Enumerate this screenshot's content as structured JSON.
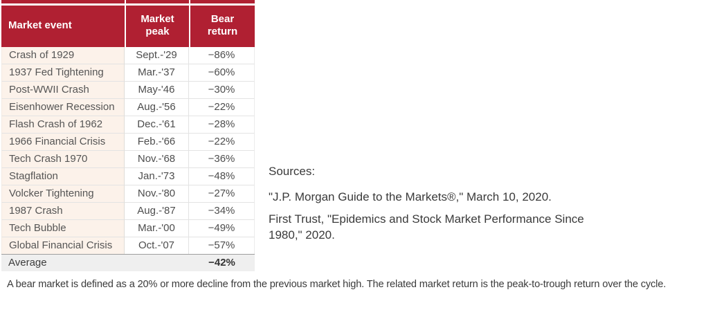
{
  "chart_data": {
    "type": "table",
    "title": "",
    "columns": [
      "Market event",
      "Market peak",
      "Bear return"
    ],
    "rows": [
      [
        "Crash of 1929",
        "Sept.-'29",
        "−86%"
      ],
      [
        "1937 Fed Tightening",
        "Mar.-'37",
        "−60%"
      ],
      [
        "Post-WWII Crash",
        "May-'46",
        "−30%"
      ],
      [
        "Eisenhower Recession",
        "Aug.-'56",
        "−22%"
      ],
      [
        "Flash Crash of 1962",
        "Dec.-'61",
        "−28%"
      ],
      [
        "1966 Financial Crisis",
        "Feb.-'66",
        "−22%"
      ],
      [
        "Tech Crash 1970",
        "Nov.-'68",
        "−36%"
      ],
      [
        "Stagflation",
        "Jan.-'73",
        "−48%"
      ],
      [
        "Volcker Tightening",
        "Nov.-'80",
        "−27%"
      ],
      [
        "1987 Crash",
        "Aug.-'87",
        "−34%"
      ],
      [
        "Tech Bubble",
        "Mar.-'00",
        "−49%"
      ],
      [
        "Global Financial Crisis",
        "Oct.-'07",
        "−57%"
      ]
    ],
    "footer": {
      "label": "Average",
      "value": "−42%"
    },
    "bear_returns_numeric_pct": [
      -86,
      -60,
      -30,
      -22,
      -28,
      -22,
      -36,
      -48,
      -27,
      -34,
      -49,
      -57
    ],
    "average_pct": -42
  },
  "sources": {
    "heading": "Sources:",
    "items": [
      "\"J.P. Morgan Guide to the Markets®,\" March 10, 2020.",
      "First Trust, \"Epidemics and Stock Market Performance Since 1980,\" 2020."
    ]
  },
  "footnote": "A bear market is defined as a 20% or more decline from the previous market high. The related market return is the peak-to-trough return over the cycle.",
  "colors": {
    "header_red": "#B02032",
    "event_column_cream": "#FCF2EA",
    "average_row_gray": "#EFEFEF",
    "body_text": "#4D4D4D"
  }
}
